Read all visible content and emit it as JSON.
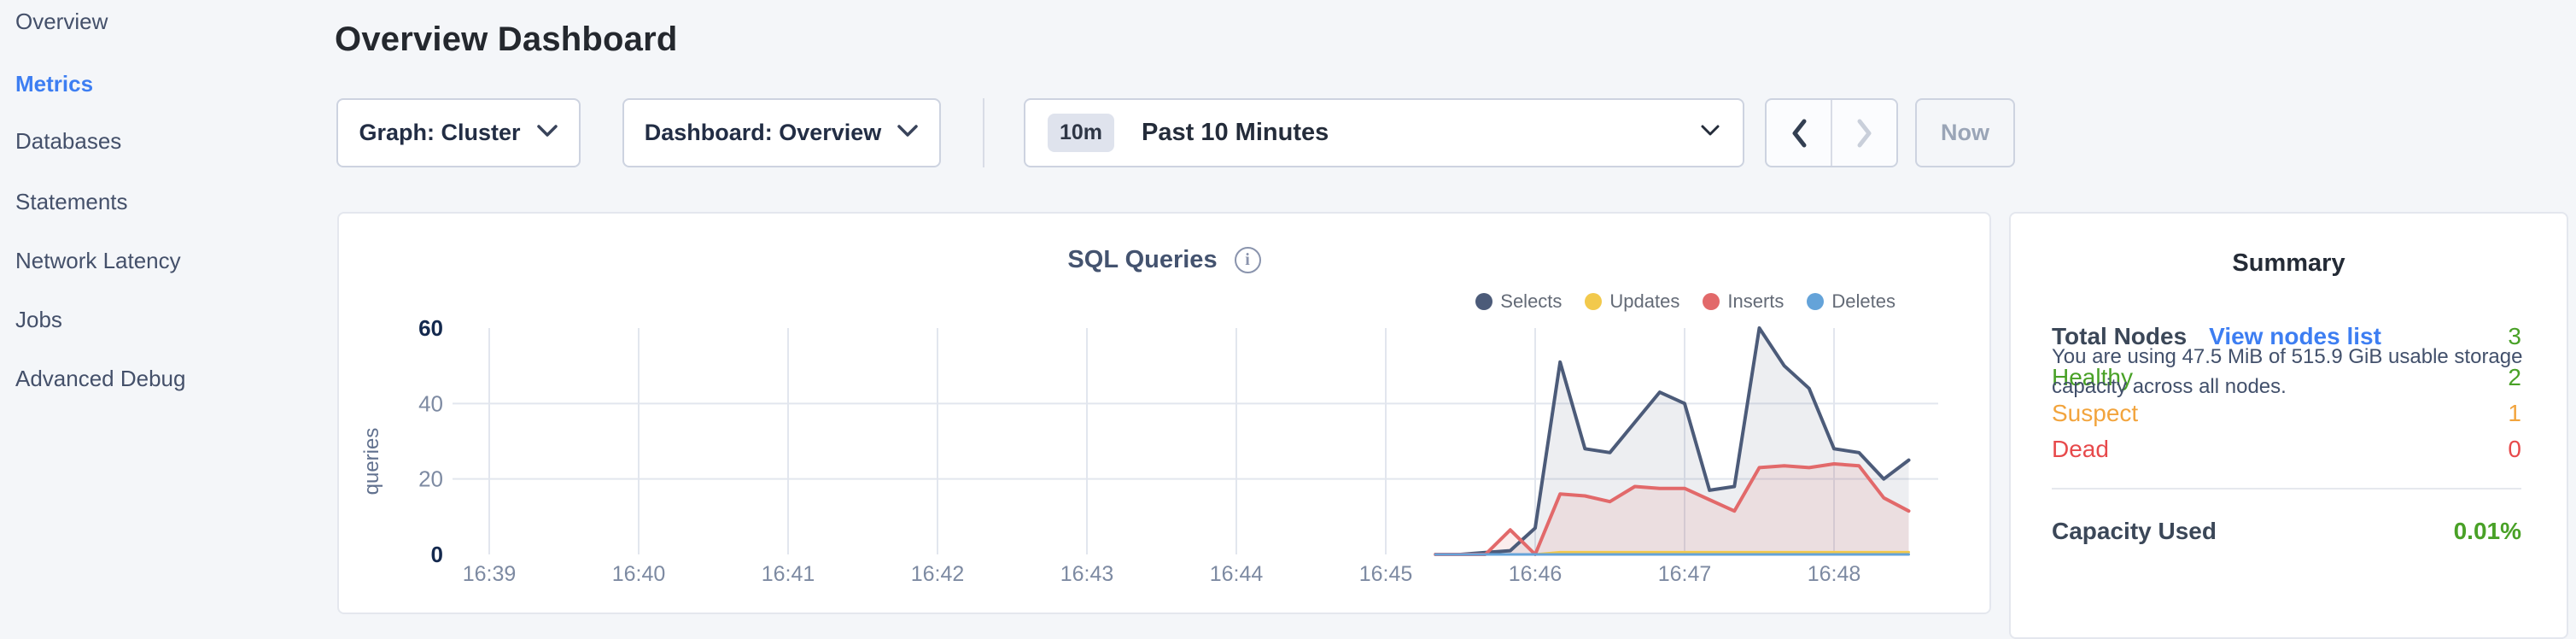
{
  "sidebar": {
    "items": [
      {
        "label": "Overview",
        "active": false
      },
      {
        "label": "Metrics",
        "active": true
      },
      {
        "label": "Databases",
        "active": false
      },
      {
        "label": "Statements",
        "active": false
      },
      {
        "label": "Network Latency",
        "active": false
      },
      {
        "label": "Jobs",
        "active": false
      },
      {
        "label": "Advanced Debug",
        "active": false
      }
    ]
  },
  "header": {
    "title": "Overview Dashboard"
  },
  "controls": {
    "graph_selector": "Graph: Cluster",
    "dashboard_selector": "Dashboard: Overview",
    "range_badge": "10m",
    "range_label": "Past 10 Minutes",
    "now_label": "Now"
  },
  "chart_data": {
    "type": "area",
    "title": "SQL Queries",
    "ylabel": "queries",
    "ylim": [
      0,
      60
    ],
    "y_ticks": [
      0,
      20,
      40,
      60
    ],
    "x_ticks": [
      "16:39",
      "16:40",
      "16:41",
      "16:42",
      "16:43",
      "16:44",
      "16:45",
      "16:46",
      "16:47",
      "16:48"
    ],
    "grid": true,
    "legend_position": "top-right",
    "x": [
      "16:45:20",
      "16:45:30",
      "16:45:40",
      "16:45:50",
      "16:46:00",
      "16:46:10",
      "16:46:20",
      "16:46:30",
      "16:46:40",
      "16:46:50",
      "16:47:00",
      "16:47:10",
      "16:47:20",
      "16:47:30",
      "16:47:40",
      "16:47:50",
      "16:48:00",
      "16:48:10",
      "16:48:20",
      "16:48:30"
    ],
    "series": [
      {
        "name": "Selects",
        "color": "#4c5b79",
        "fill": "rgba(76,91,121,0.10)",
        "line_width": 4,
        "values": [
          0,
          0,
          0.5,
          1,
          7,
          51,
          28,
          27,
          35,
          43,
          40,
          17,
          18,
          60,
          50,
          44,
          28,
          27,
          20,
          25
        ]
      },
      {
        "name": "Updates",
        "color": "#f2c94c",
        "fill": null,
        "line_width": 3,
        "values": [
          0,
          0,
          0,
          0,
          0,
          0.6,
          0.6,
          0.6,
          0.6,
          0.6,
          0.6,
          0.6,
          0.6,
          0.6,
          0.6,
          0.6,
          0.6,
          0.6,
          0.6,
          0.6
        ]
      },
      {
        "name": "Inserts",
        "color": "#e2696a",
        "fill": "rgba(226,105,106,0.12)",
        "line_width": 4,
        "values": [
          0,
          0,
          0,
          6.5,
          0,
          16,
          15.5,
          14,
          18,
          17.5,
          17.5,
          14.5,
          11.5,
          23,
          23.5,
          23,
          24,
          23.5,
          15,
          11.5
        ]
      },
      {
        "name": "Deletes",
        "color": "#64a3d9",
        "fill": null,
        "line_width": 3,
        "values": [
          0,
          0,
          0,
          0,
          0,
          0,
          0,
          0,
          0,
          0,
          0,
          0,
          0,
          0,
          0,
          0,
          0,
          0,
          0,
          0
        ]
      }
    ]
  },
  "summary": {
    "title": "Summary",
    "total_nodes_label": "Total Nodes",
    "view_nodes_link": "View nodes list",
    "total_nodes_value": "3",
    "rows": [
      {
        "label": "Healthy",
        "value": "2",
        "color": "#49a127"
      },
      {
        "label": "Suspect",
        "value": "1",
        "color": "#f2a43d"
      },
      {
        "label": "Dead",
        "value": "0",
        "color": "#e7494b"
      }
    ],
    "capacity_label": "Capacity Used",
    "capacity_value": "0.01%",
    "capacity_description": "You are using 47.5 MiB of 515.9 GiB usable storage capacity across all nodes."
  },
  "colors": {
    "accent_blue": "#3d7ef2",
    "green": "#49a127",
    "orange": "#f2a43d",
    "red": "#e7494b",
    "total_value_green": "#49a127",
    "grid": "#e2e6ee",
    "axis_strong": "#14294e",
    "axis_muted": "#7d8aa2"
  }
}
